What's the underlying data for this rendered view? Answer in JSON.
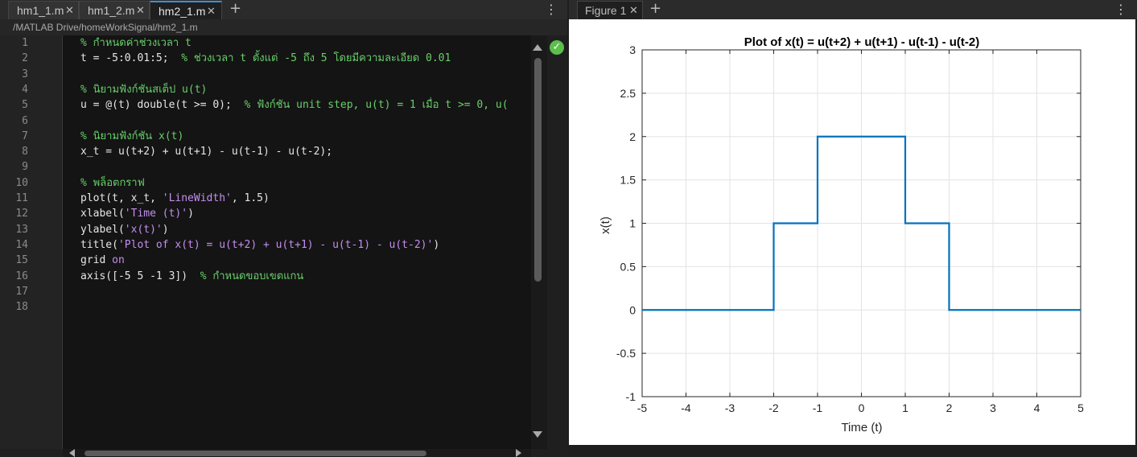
{
  "editor": {
    "tabs": [
      {
        "label": "hm1_1.m",
        "active": false
      },
      {
        "label": "hm1_2.m",
        "active": false
      },
      {
        "label": "hm2_1.m",
        "active": true
      }
    ],
    "path": "/MATLAB Drive/homeWorkSignal/hm2_1.m",
    "status_icon": "check-circle-icon",
    "lines": [
      {
        "n": "1",
        "text": "% กำหนดค่าช่วงเวลา t"
      },
      {
        "n": "2",
        "text": "t = -5:0.01:5;  % ช่วงเวลา t ตั้งแต่ -5 ถึง 5 โดยมีความละเอียด 0.01"
      },
      {
        "n": "3",
        "text": ""
      },
      {
        "n": "4",
        "text": "% นิยามฟังก์ชันสเต็ป u(t)"
      },
      {
        "n": "5",
        "text": "u = @(t) double(t >= 0);  % ฟังก์ชัน unit step, u(t) = 1 เมื่อ t >= 0, u("
      },
      {
        "n": "6",
        "text": ""
      },
      {
        "n": "7",
        "text": "% นิยามฟังก์ชัน x(t)"
      },
      {
        "n": "8",
        "text": "x_t = u(t+2) + u(t+1) - u(t-1) - u(t-2);"
      },
      {
        "n": "9",
        "text": ""
      },
      {
        "n": "10",
        "text": "% พล็อตกราฟ"
      },
      {
        "n": "11",
        "text": "plot(t, x_t, 'LineWidth', 1.5)"
      },
      {
        "n": "12",
        "text": "xlabel('Time (t)')"
      },
      {
        "n": "13",
        "text": "ylabel('x(t)')"
      },
      {
        "n": "14",
        "text": "title('Plot of x(t) = u(t+2) + u(t+1) - u(t-1) - u(t-2)')"
      },
      {
        "n": "15",
        "text": "grid on"
      },
      {
        "n": "16",
        "text": "axis([-5 5 -1 3])  % กำหนดขอบเขตแกน"
      },
      {
        "n": "17",
        "text": ""
      },
      {
        "n": "18",
        "text": ""
      }
    ]
  },
  "figure": {
    "tab_label": "Figure 1"
  },
  "chart_data": {
    "type": "line",
    "title": "Plot of x(t) = u(t+2) + u(t+1) - u(t-1) - u(t-2)",
    "xlabel": "Time (t)",
    "ylabel": "x(t)",
    "xlim": [
      -5,
      5
    ],
    "ylim": [
      -1,
      3
    ],
    "xticks": [
      -5,
      -4,
      -3,
      -2,
      -1,
      0,
      1,
      2,
      3,
      4,
      5
    ],
    "yticks": [
      -1,
      -0.5,
      0,
      0.5,
      1,
      1.5,
      2,
      2.5,
      3
    ],
    "grid": true,
    "line_color": "#0072BD",
    "series": [
      {
        "x": [
          -5,
          -2,
          -2,
          -1,
          -1,
          1,
          1,
          2,
          2,
          5
        ],
        "y": [
          0,
          0,
          1,
          1,
          2,
          2,
          1,
          1,
          0,
          0
        ]
      }
    ]
  }
}
